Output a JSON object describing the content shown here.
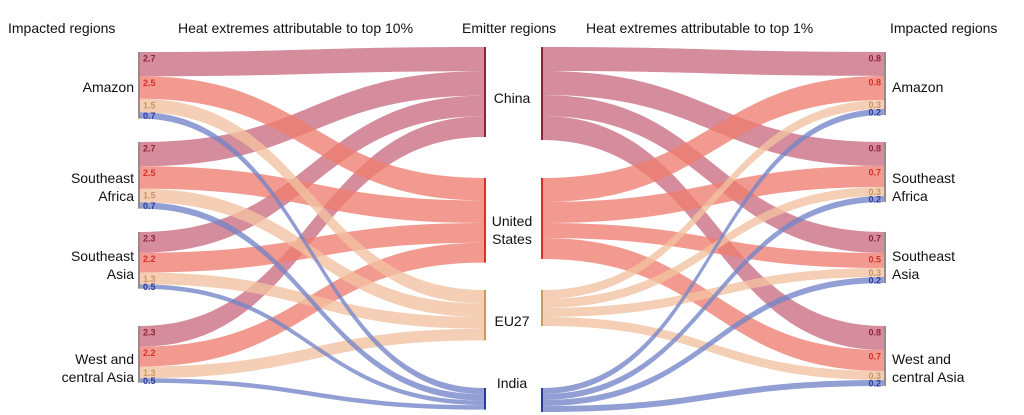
{
  "headers": {
    "impacted_left": "Impacted regions",
    "title_left": "Heat extremes attributable to top 10%",
    "emitter": "Emitter regions",
    "title_right": "Heat extremes attributable to top 1%",
    "impacted_right": "Impacted regions"
  },
  "impacted_regions": [
    "Amazon",
    "Southeast\nAfrica",
    "Southeast\nAsia",
    "West and\ncentral Asia"
  ],
  "emitter_regions": [
    "China",
    "United\nStates",
    "EU27",
    "India"
  ],
  "colors": {
    "China": "#c96b80",
    "United States": "#ee7d6f",
    "EU27": "#f2c2a0",
    "India": "#7384c8",
    "China_value_text": "#8f2439",
    "United States_value_text": "#d5302a",
    "EU27_value_text": "#c9975f",
    "India_value_text": "#2b3b9c"
  },
  "chart_data": {
    "type": "sankey",
    "panels": [
      {
        "title": "Heat extremes attributable to top 10%",
        "flows": [
          {
            "impacted": "Amazon",
            "values": {
              "China": 2.7,
              "United States": 2.5,
              "EU27": 1.5,
              "India": 0.7
            }
          },
          {
            "impacted": "Southeast Africa",
            "values": {
              "China": 2.7,
              "United States": 2.5,
              "EU27": 1.5,
              "India": 0.7
            }
          },
          {
            "impacted": "Southeast Asia",
            "values": {
              "China": 2.3,
              "United States": 2.2,
              "EU27": 1.3,
              "India": 0.5
            }
          },
          {
            "impacted": "West and central Asia",
            "values": {
              "China": 2.3,
              "United States": 2.2,
              "EU27": 1.3,
              "India": 0.5
            }
          }
        ]
      },
      {
        "title": "Heat extremes attributable to top 1%",
        "flows": [
          {
            "impacted": "Amazon",
            "values": {
              "China": 0.8,
              "United States": 0.8,
              "EU27": 0.3,
              "India": 0.2
            }
          },
          {
            "impacted": "Southeast Africa",
            "values": {
              "China": 0.8,
              "United States": 0.7,
              "EU27": 0.3,
              "India": 0.2
            }
          },
          {
            "impacted": "Southeast Asia",
            "values": {
              "China": 0.7,
              "United States": 0.5,
              "EU27": 0.3,
              "India": 0.2
            }
          },
          {
            "impacted": "West and central Asia",
            "values": {
              "China": 0.8,
              "United States": 0.7,
              "EU27": 0.3,
              "India": 0.2
            }
          }
        ]
      }
    ]
  }
}
